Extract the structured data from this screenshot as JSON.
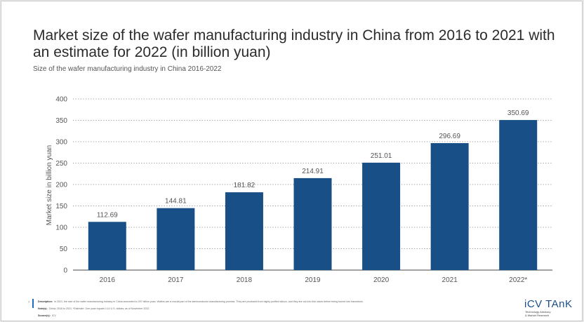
{
  "header": {
    "title": "Market size of the wafer manufacturing industry in China from 2016 to 2021 with an estimate for 2022 (in billion yuan)",
    "subtitle": "Size of the wafer manufacturing industry in China 2016-2022"
  },
  "chart_data": {
    "type": "bar",
    "categories": [
      "2016",
      "2017",
      "2018",
      "2019",
      "2020",
      "2021",
      "2022*"
    ],
    "values": [
      112.69,
      144.81,
      181.82,
      214.91,
      251.01,
      296.69,
      350.69
    ],
    "value_labels": [
      "112.69",
      "144.81",
      "181.82",
      "214.91",
      "251.01",
      "296.69",
      "350.69"
    ],
    "ylabel": "Market size in billion yuan",
    "ylim": [
      0,
      400
    ],
    "yticks": [
      0,
      50,
      100,
      150,
      200,
      250,
      300,
      350,
      400
    ],
    "grid": true,
    "bar_color": "#174f86"
  },
  "footer": {
    "page_number": "7",
    "description_label": "Description:",
    "description_text": "In 2021, the size of the wafer manufacturing industry in China amounted to 297 billion yuan. Wafers are a crucial part of the semiconductor manufacturing process. They are produced from highly purified silicon, and they are cut into thin slices before being turned into transistors.",
    "notes_label": "Note(s):",
    "notes_text": "China; 2016 to 2021; *Estimate. One yuan equals 0.14 U.S. dollars; as of November 2022.",
    "source_label": "Source(s):",
    "source_text": "ICV"
  },
  "logo": {
    "name": "iCV TAnK",
    "tagline_1": "Technology Advisory",
    "tagline_2": "& Market Research"
  }
}
